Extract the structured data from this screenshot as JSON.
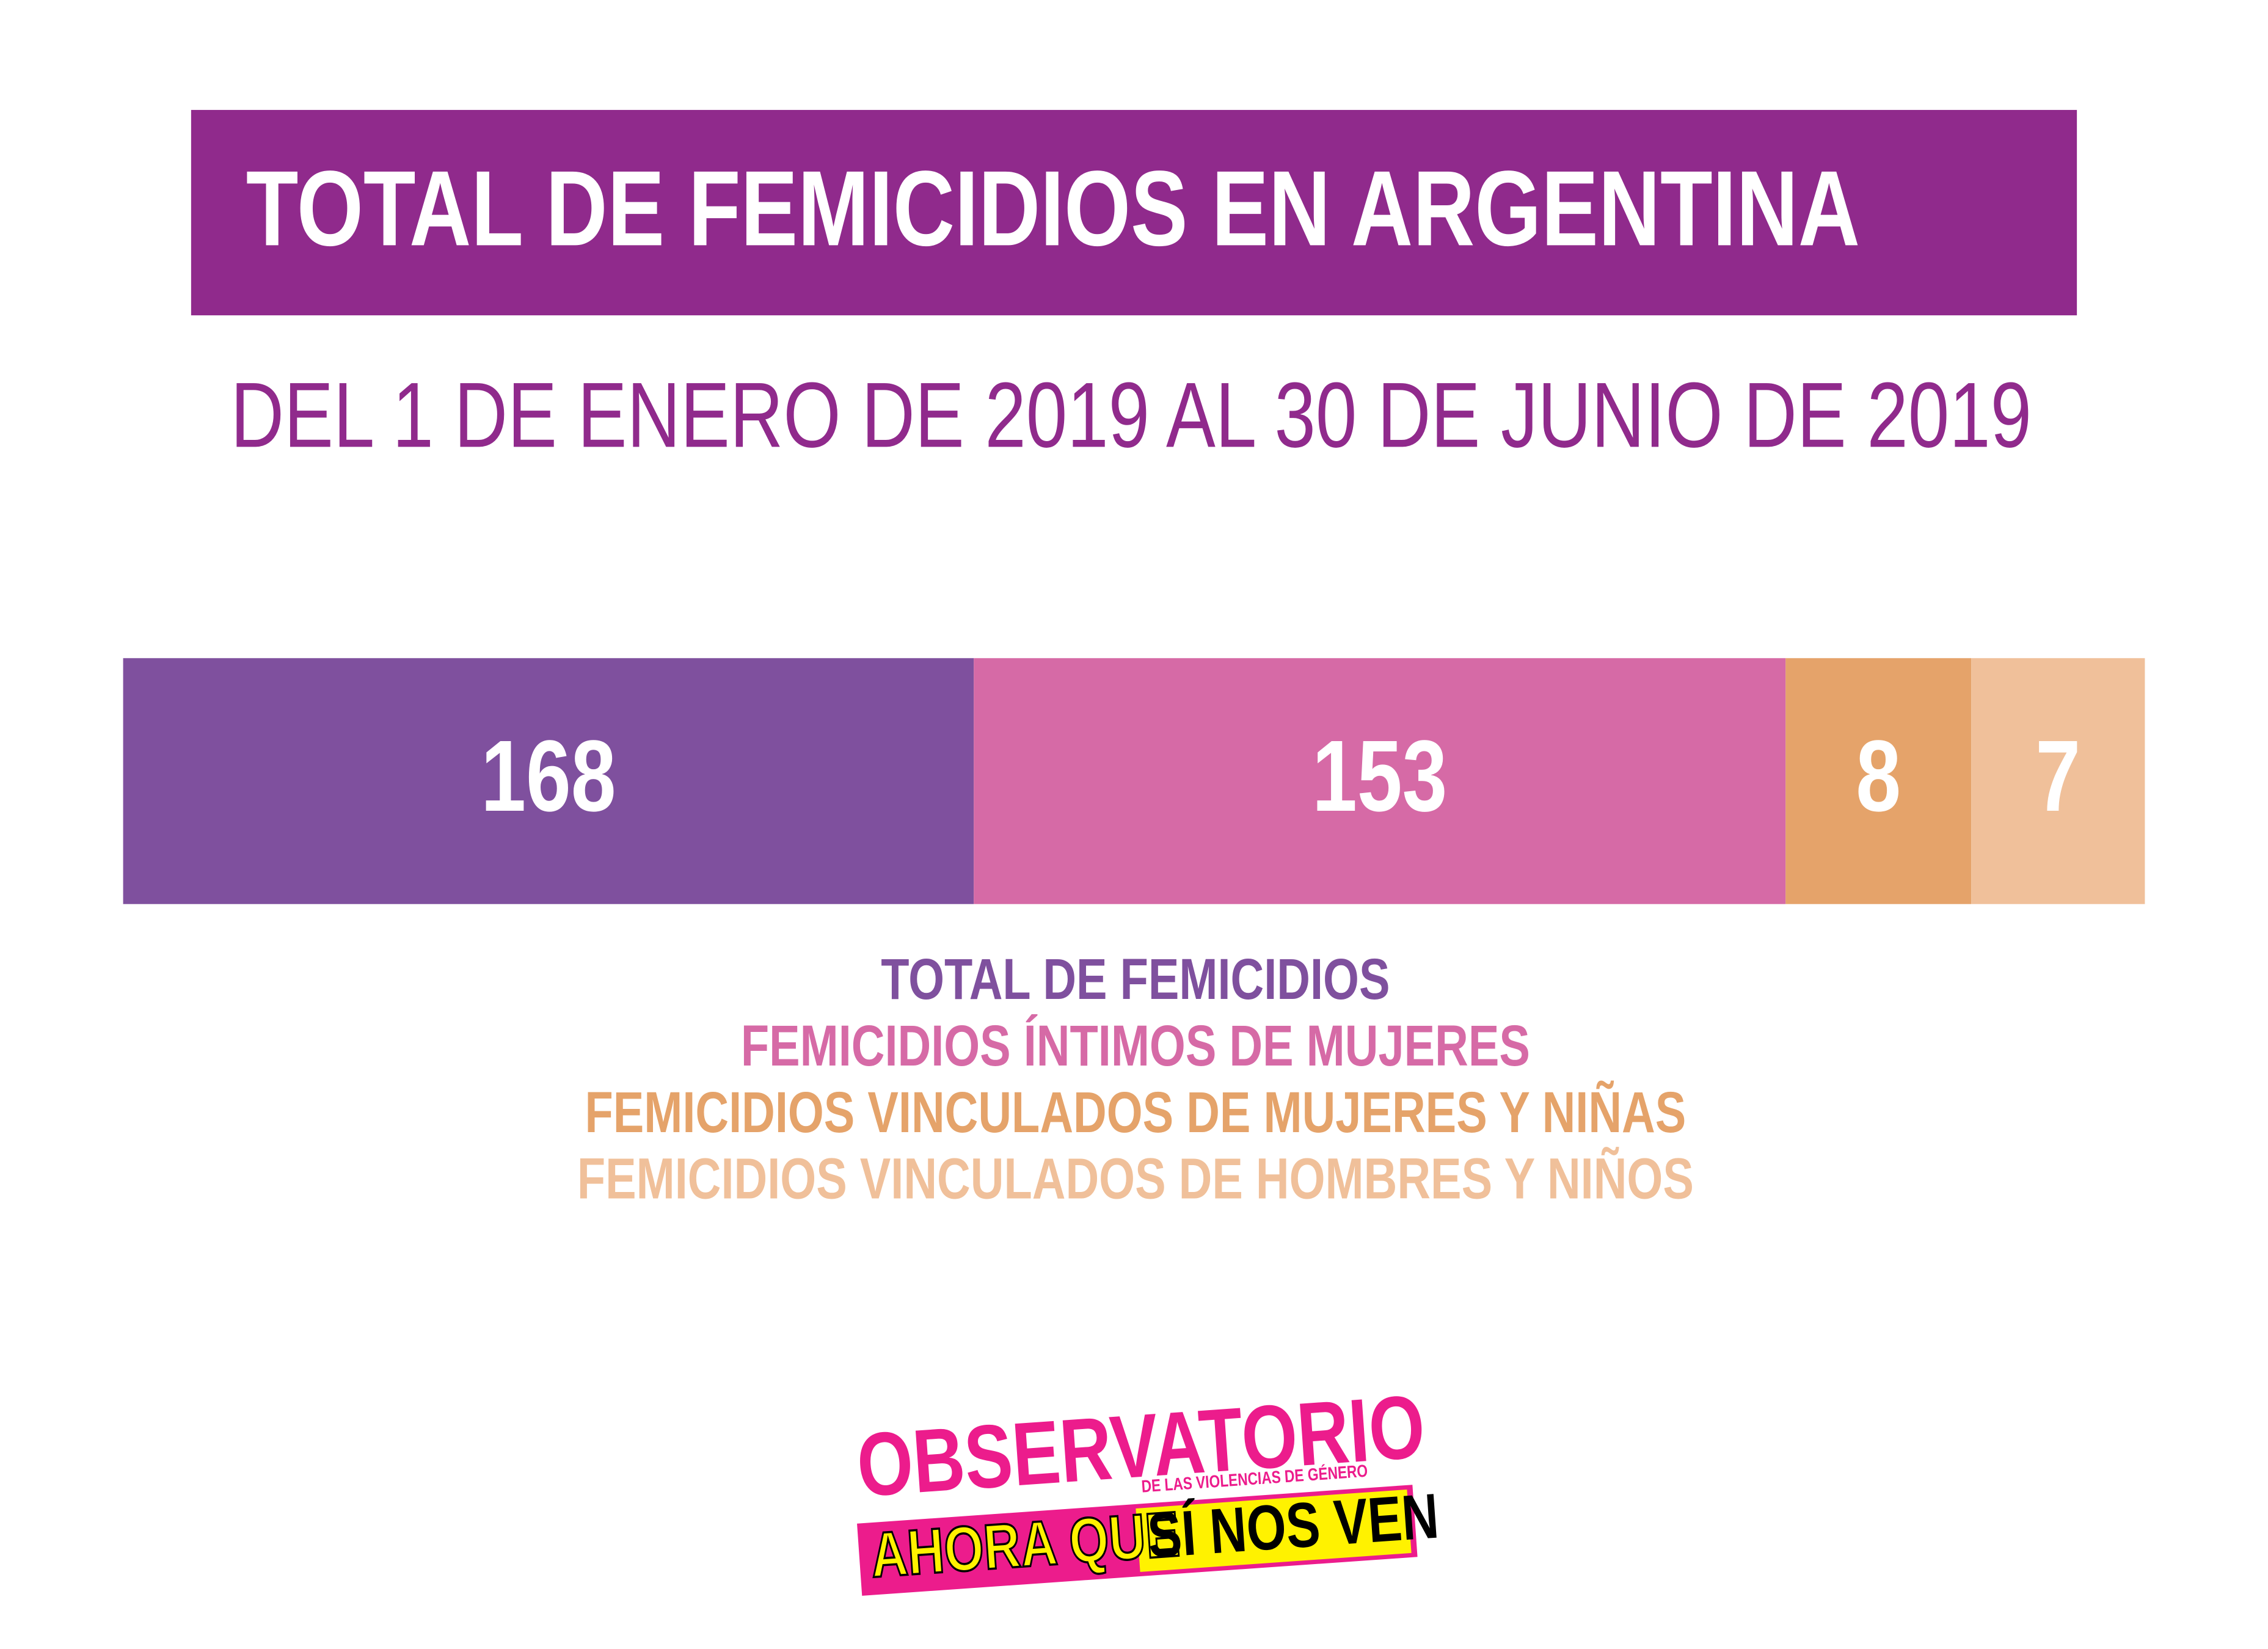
{
  "chart_data": {
    "type": "stacked-bar",
    "title": "TOTAL DE FEMICIDIOS EN ARGENTINA",
    "subtitle": "DEL 1 DE ENERO DE 2019 AL 30 DE JUNIO DE 2019",
    "series": [
      {
        "name": "TOTAL DE FEMICIDIOS",
        "color": "#7f509e",
        "values": [
          168
        ]
      },
      {
        "name": "FEMICIDIOS ÍNTIMOS DE MUJERES",
        "color": "#d66aa6",
        "values": [
          153
        ]
      },
      {
        "name": "FEMICIDIOS VINCULADOS DE MUJERES Y NIÑAS",
        "color": "#e5a36a",
        "values": [
          8
        ]
      },
      {
        "name": "FEMICIDIOS VINCULADOS DE HOMBRES Y NIÑOS",
        "color": "#f0c09a",
        "values": [
          7
        ]
      }
    ]
  },
  "logo": {
    "title": "OBSERVATORIO",
    "subtitle": "DE LAS VIOLENCIAS DE GÉNERO",
    "line_left": "AHORA QUE",
    "line_right": "SÍ NOS VEN"
  }
}
